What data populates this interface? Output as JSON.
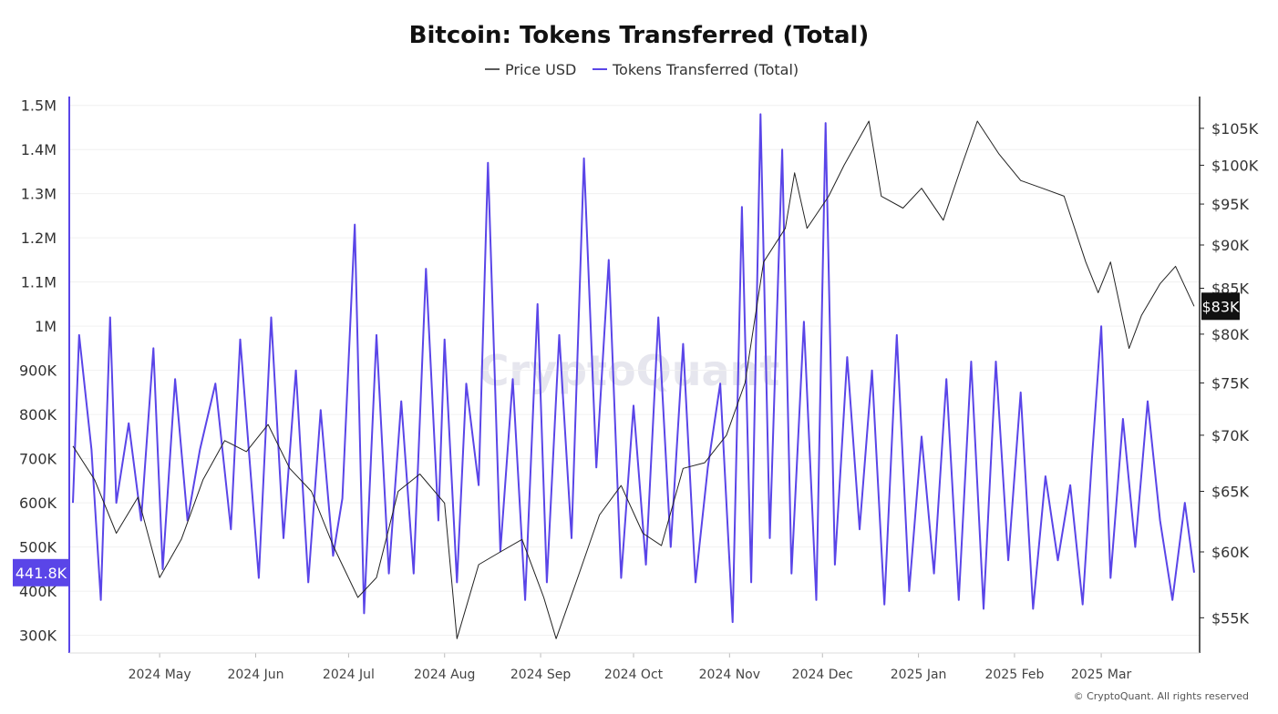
{
  "chart_data": {
    "type": "line",
    "title": "Bitcoin: Tokens Transferred (Total)",
    "legend": {
      "placement": "top-center"
    },
    "grid": true,
    "colors": {
      "price": "#222222",
      "tokens": "#5a45e8",
      "badge_price_bg": "#111111"
    },
    "x_ticks": [
      "2024 May",
      "2024 Jun",
      "2024 Jul",
      "2024 Aug",
      "2024 Sep",
      "2024 Oct",
      "2024 Nov",
      "2024 Dec",
      "2025 Jan",
      "2025 Feb",
      "2025 Mar"
    ],
    "x_tick_dates": [
      "2024-05-01",
      "2024-06-01",
      "2024-07-01",
      "2024-08-01",
      "2024-09-01",
      "2024-10-01",
      "2024-11-01",
      "2024-12-01",
      "2025-01-01",
      "2025-02-01",
      "2025-03-01"
    ],
    "x_range": [
      "2024-04-03",
      "2025-03-31"
    ],
    "y_left": {
      "ylim": [
        260000,
        1520000
      ],
      "ticks": [
        300000,
        400000,
        500000,
        600000,
        700000,
        800000,
        900000,
        1000000,
        1100000,
        1200000,
        1300000,
        1400000,
        1500000
      ],
      "tick_labels": [
        "300K",
        "400K",
        "500K",
        "600K",
        "700K",
        "800K",
        "900K",
        "1M",
        "1.1M",
        "1.2M",
        "1.3M",
        "1.4M",
        "1.5M"
      ]
    },
    "y_right": {
      "scale": "log",
      "ylim": [
        52500,
        109500
      ],
      "ticks": [
        55000,
        60000,
        65000,
        70000,
        75000,
        80000,
        85000,
        90000,
        95000,
        100000,
        105000
      ],
      "tick_labels": [
        "$55K",
        "$60K",
        "$65K",
        "$70K",
        "$75K",
        "$80K",
        "$85K",
        "$90K",
        "$95K",
        "$100K",
        "$105K"
      ]
    },
    "current_value_badges": {
      "tokens": "441.8K",
      "price": "$83K"
    },
    "series": [
      {
        "name": "Price USD",
        "axis": "right",
        "x": [
          "2024-04-03",
          "2024-04-10",
          "2024-04-17",
          "2024-04-24",
          "2024-05-01",
          "2024-05-08",
          "2024-05-15",
          "2024-05-22",
          "2024-05-29",
          "2024-06-05",
          "2024-06-12",
          "2024-06-19",
          "2024-06-26",
          "2024-07-04",
          "2024-07-10",
          "2024-07-17",
          "2024-07-24",
          "2024-08-01",
          "2024-08-05",
          "2024-08-12",
          "2024-08-19",
          "2024-08-26",
          "2024-09-02",
          "2024-09-06",
          "2024-09-13",
          "2024-09-20",
          "2024-09-27",
          "2024-10-04",
          "2024-10-10",
          "2024-10-17",
          "2024-10-24",
          "2024-10-31",
          "2024-11-06",
          "2024-11-12",
          "2024-11-19",
          "2024-11-22",
          "2024-11-26",
          "2024-12-03",
          "2024-12-08",
          "2024-12-16",
          "2024-12-20",
          "2024-12-27",
          "2025-01-02",
          "2025-01-09",
          "2025-01-15",
          "2025-01-20",
          "2025-01-27",
          "2025-02-03",
          "2025-02-10",
          "2025-02-17",
          "2025-02-24",
          "2025-02-28",
          "2025-03-04",
          "2025-03-10",
          "2025-03-14",
          "2025-03-20",
          "2025-03-25",
          "2025-03-31"
        ],
        "values": [
          69000,
          66000,
          61500,
          64500,
          58000,
          61000,
          66000,
          69500,
          68500,
          71000,
          67000,
          65000,
          60500,
          56500,
          58000,
          65000,
          66500,
          64000,
          53500,
          59000,
          60000,
          61000,
          56500,
          53500,
          58000,
          63000,
          65500,
          61500,
          60500,
          67000,
          67500,
          70000,
          75000,
          88000,
          92000,
          99000,
          92000,
          96000,
          100000,
          106000,
          96000,
          94500,
          97000,
          93000,
          100000,
          106000,
          101500,
          98000,
          97000,
          96000,
          88000,
          84500,
          88000,
          78500,
          82000,
          85500,
          87500,
          83000
        ]
      },
      {
        "name": "Tokens Transferred (Total)",
        "axis": "left",
        "x": [
          "2024-04-03",
          "2024-04-05",
          "2024-04-09",
          "2024-04-12",
          "2024-04-15",
          "2024-04-17",
          "2024-04-21",
          "2024-04-25",
          "2024-04-29",
          "2024-05-02",
          "2024-05-06",
          "2024-05-10",
          "2024-05-14",
          "2024-05-19",
          "2024-05-24",
          "2024-05-27",
          "2024-06-02",
          "2024-06-06",
          "2024-06-10",
          "2024-06-14",
          "2024-06-18",
          "2024-06-22",
          "2024-06-26",
          "2024-06-29",
          "2024-07-03",
          "2024-07-06",
          "2024-07-10",
          "2024-07-14",
          "2024-07-18",
          "2024-07-22",
          "2024-07-26",
          "2024-07-30",
          "2024-08-01",
          "2024-08-05",
          "2024-08-08",
          "2024-08-12",
          "2024-08-15",
          "2024-08-19",
          "2024-08-23",
          "2024-08-27",
          "2024-08-31",
          "2024-09-03",
          "2024-09-07",
          "2024-09-11",
          "2024-09-15",
          "2024-09-19",
          "2024-09-23",
          "2024-09-27",
          "2024-10-01",
          "2024-10-05",
          "2024-10-09",
          "2024-10-13",
          "2024-10-17",
          "2024-10-21",
          "2024-10-25",
          "2024-10-29",
          "2024-11-02",
          "2024-11-05",
          "2024-11-08",
          "2024-11-11",
          "2024-11-14",
          "2024-11-18",
          "2024-11-21",
          "2024-11-25",
          "2024-11-29",
          "2024-12-02",
          "2024-12-05",
          "2024-12-09",
          "2024-12-13",
          "2024-12-17",
          "2024-12-21",
          "2024-12-25",
          "2024-12-29",
          "2025-01-02",
          "2025-01-06",
          "2025-01-10",
          "2025-01-14",
          "2025-01-18",
          "2025-01-22",
          "2025-01-26",
          "2025-01-30",
          "2025-02-03",
          "2025-02-07",
          "2025-02-11",
          "2025-02-15",
          "2025-02-19",
          "2025-02-23",
          "2025-02-26",
          "2025-03-01",
          "2025-03-04",
          "2025-03-08",
          "2025-03-12",
          "2025-03-16",
          "2025-03-20",
          "2025-03-24",
          "2025-03-28",
          "2025-03-31"
        ],
        "values": [
          600000,
          980000,
          720000,
          380000,
          1020000,
          600000,
          780000,
          560000,
          950000,
          450000,
          880000,
          560000,
          720000,
          870000,
          540000,
          970000,
          430000,
          1020000,
          520000,
          900000,
          420000,
          810000,
          480000,
          610000,
          1230000,
          350000,
          980000,
          440000,
          830000,
          440000,
          1130000,
          560000,
          970000,
          420000,
          870000,
          640000,
          1370000,
          490000,
          880000,
          380000,
          1050000,
          420000,
          980000,
          520000,
          1380000,
          680000,
          1150000,
          430000,
          820000,
          460000,
          1020000,
          500000,
          960000,
          420000,
          680000,
          870000,
          330000,
          1270000,
          420000,
          1480000,
          520000,
          1400000,
          440000,
          1010000,
          380000,
          1460000,
          460000,
          930000,
          540000,
          900000,
          370000,
          980000,
          400000,
          750000,
          440000,
          880000,
          380000,
          920000,
          360000,
          920000,
          470000,
          850000,
          360000,
          660000,
          470000,
          640000,
          370000,
          700000,
          1000000,
          430000,
          790000,
          500000,
          830000,
          560000,
          380000,
          600000,
          441800
        ]
      }
    ]
  },
  "credit": "© CryptoQuant. All rights reserved",
  "watermark": "CryptoQuant"
}
